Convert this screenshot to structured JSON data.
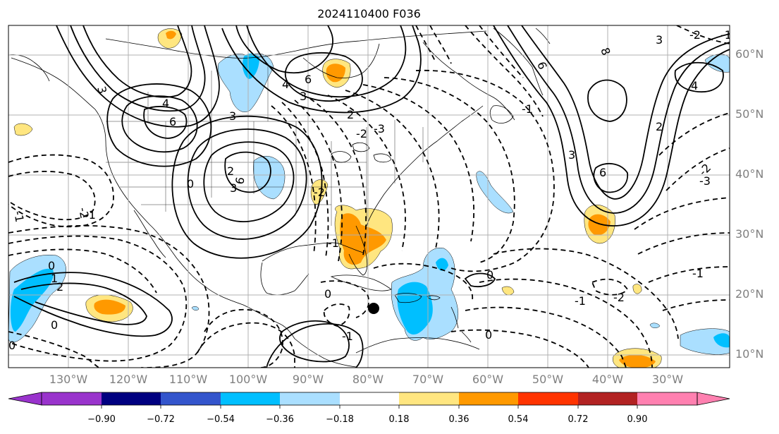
{
  "title": "2024110400 F036",
  "map": {
    "projection": "plate-carree",
    "extent": {
      "lon": [
        -138,
        -18
      ],
      "lat": [
        8,
        65
      ]
    },
    "grid": true,
    "contours": {
      "solid_labels": [
        "3",
        "6",
        "3",
        "4",
        "6",
        "3",
        "4",
        "6",
        "0",
        "2",
        "3",
        "2",
        "6",
        "8",
        "4",
        "3",
        "6",
        "3",
        "2",
        "1",
        "2"
      ],
      "dashed_labels": [
        "-1",
        "-2",
        "-1",
        "0",
        "0",
        "-2",
        "-3",
        "-2",
        "-1",
        "-1",
        "0",
        "-1",
        "-2",
        "-2",
        "-3",
        "-1",
        "0",
        "-1",
        "0",
        "-2",
        "-1",
        "0"
      ]
    },
    "marker": {
      "type": "filled-circle",
      "lon": -80.3,
      "lat": 18.3
    }
  },
  "lon_labels": [
    "130°W",
    "120°W",
    "110°W",
    "100°W",
    "90°W",
    "80°W",
    "70°W",
    "60°W",
    "50°W",
    "40°W",
    "30°W"
  ],
  "lat_labels": [
    "60°N",
    "50°N",
    "40°N",
    "30°N",
    "20°N",
    "10°N"
  ],
  "colorbar": {
    "ticks": [
      "−0.90",
      "−0.72",
      "−0.54",
      "−0.36",
      "−0.18",
      "0.18",
      "0.36",
      "0.54",
      "0.72",
      "0.90"
    ],
    "colors": [
      "#9933cc",
      "#000080",
      "#3355cc",
      "#00bfff",
      "#aadfff",
      "#ffffff",
      "#ffe680",
      "#ff9900",
      "#ff3300",
      "#b22222",
      "#ff80b0"
    ],
    "extend": "both"
  }
}
